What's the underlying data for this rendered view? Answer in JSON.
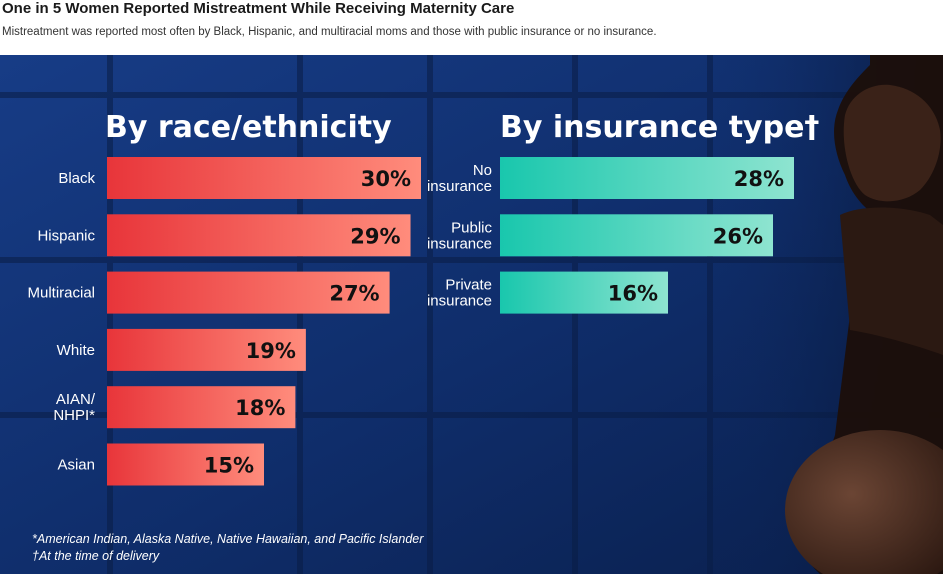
{
  "header": {
    "title": "One in 5 Women Reported Mistreatment While Receiving Maternity Care",
    "subtitle": "Mistreatment was reported most often by Black, Hispanic, and multiracial moms and those with public insurance or no insurance."
  },
  "chart_data": [
    {
      "type": "bar",
      "orientation": "horizontal",
      "title": "By race/ethnicity",
      "categories": [
        "Black",
        "Hispanic",
        "Multiracial",
        "White",
        "AIAN/\nNHPI*",
        "Asian"
      ],
      "values": [
        30,
        29,
        27,
        19,
        18,
        15
      ],
      "value_labels": [
        "30%",
        "29%",
        "27%",
        "19%",
        "18%",
        "15%"
      ],
      "unit": "%",
      "xlim": [
        0,
        30
      ],
      "grid": false,
      "legend": "none",
      "colors": {
        "bar_start": "#e8353a",
        "bar_end": "#ff8c7c"
      }
    },
    {
      "type": "bar",
      "orientation": "horizontal",
      "title": "By insurance type†",
      "categories": [
        "No\ninsurance",
        "Public\ninsurance",
        "Private\ninsurance"
      ],
      "values": [
        28,
        26,
        16
      ],
      "value_labels": [
        "28%",
        "26%",
        "16%"
      ],
      "unit": "%",
      "xlim": [
        0,
        28
      ],
      "grid": false,
      "legend": "none",
      "colors": {
        "bar_start": "#19c7ad",
        "bar_end": "#8ee4d0"
      }
    }
  ],
  "footnotes": [
    "*American Indian, Alaska Native, Native Hawaiian, and Pacific Islander",
    "†At the time of delivery"
  ],
  "colors": {
    "panel_background": "#0e2a63",
    "text_on_panel": "#ffffff"
  }
}
